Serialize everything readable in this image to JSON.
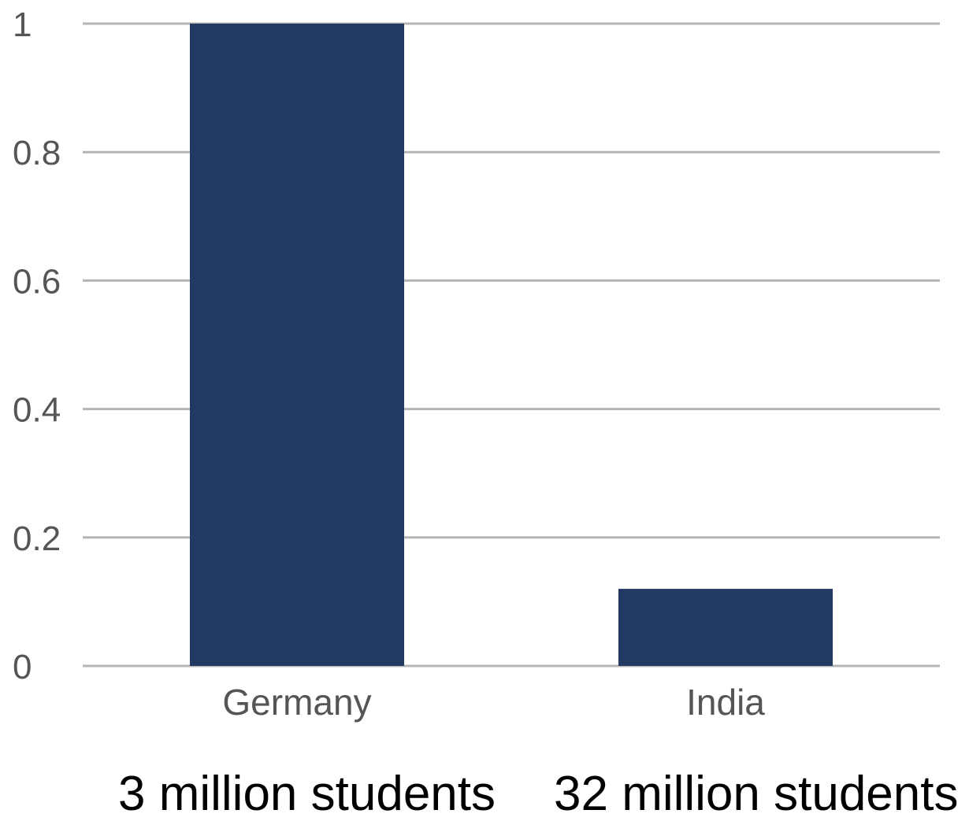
{
  "chart_data": {
    "type": "bar",
    "categories": [
      "Germany",
      "India"
    ],
    "values": [
      1.0,
      0.12
    ],
    "ylim": [
      0,
      1
    ],
    "yticks": [
      "0",
      "0.2",
      "0.4",
      "0.6",
      "0.8",
      "1"
    ],
    "grid": true,
    "legend": "none",
    "title": "",
    "xlabel": "",
    "ylabel": "",
    "annotations": [
      "3 million students",
      "32 million students"
    ]
  },
  "colors": {
    "bar": "#213963",
    "grid": "#b5b5b5",
    "tick_text": "#555555",
    "note_text": "#000000"
  }
}
